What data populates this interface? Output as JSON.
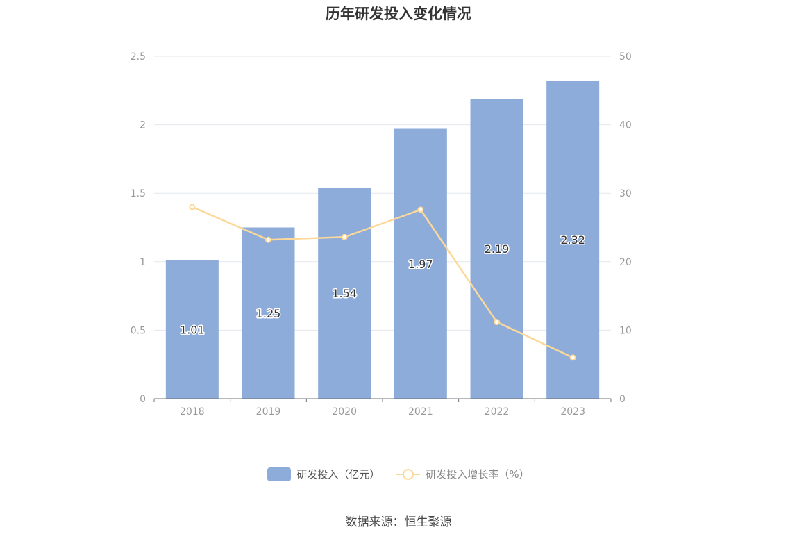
{
  "title": "历年研发投入变化情况",
  "source": "数据来源：恒生聚源",
  "colors": {
    "bar": "#8eacd9",
    "line": "#fcd99a",
    "axis": "#999999",
    "grid": "#e4e7ee",
    "bar_label": "#333333"
  },
  "legend": [
    {
      "label": "研发投入（亿元）",
      "type": "bar"
    },
    {
      "label": "研发投入增长率（%）",
      "type": "line"
    }
  ],
  "chart_data": {
    "type": "bar",
    "title": "历年研发投入变化情况",
    "categories": [
      "2018",
      "2019",
      "2020",
      "2021",
      "2022",
      "2023"
    ],
    "series": [
      {
        "name": "研发投入（亿元）",
        "type": "bar",
        "axis": "left",
        "values": [
          1.01,
          1.25,
          1.54,
          1.97,
          2.19,
          2.32
        ],
        "labels": [
          "1.01",
          "1.25",
          "1.54",
          "1.97",
          "2.19",
          "2.32"
        ]
      },
      {
        "name": "研发投入增长率（%）",
        "type": "line",
        "axis": "right",
        "values": [
          28.0,
          23.2,
          23.6,
          27.6,
          11.2,
          6.0
        ]
      }
    ],
    "y_left": {
      "min": 0,
      "max": 2.5,
      "ticks": [
        "0",
        "0.5",
        "1",
        "1.5",
        "2",
        "2.5"
      ]
    },
    "y_right": {
      "min": 0,
      "max": 50,
      "ticks": [
        "0",
        "10",
        "20",
        "30",
        "40",
        "50"
      ]
    },
    "grid": true,
    "legend_position": "bottom"
  }
}
